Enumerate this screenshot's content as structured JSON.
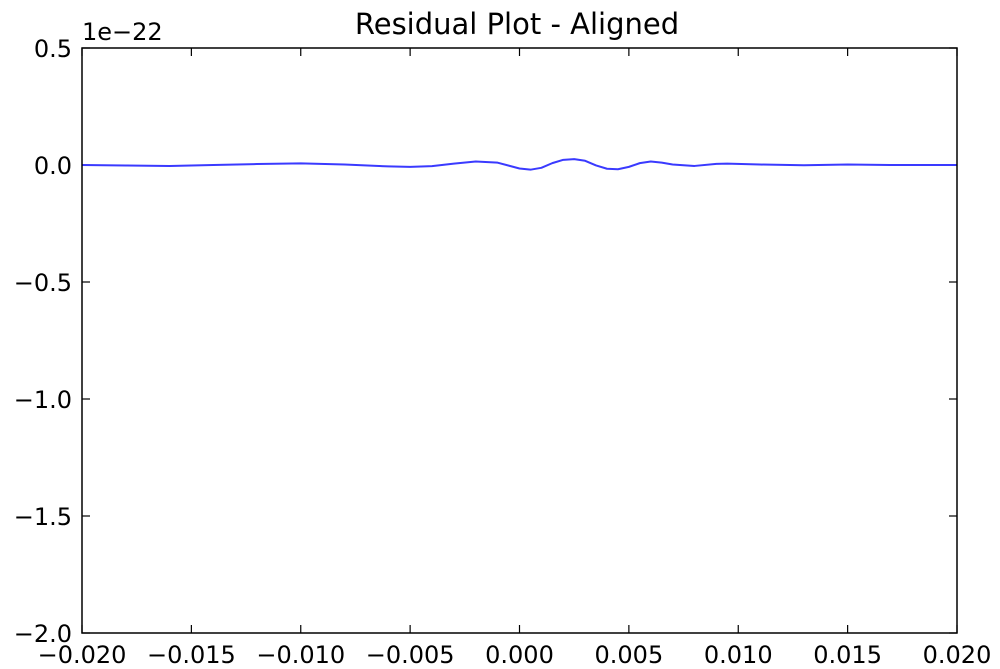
{
  "chart_data": {
    "type": "line",
    "title": "Residual Plot - Aligned",
    "xlabel": "",
    "ylabel": "",
    "y_offset_label": "1e−22",
    "xlim": [
      -0.02,
      0.02
    ],
    "ylim": [
      -2.0,
      0.5
    ],
    "grid": false,
    "x_ticks": [
      -0.02,
      -0.015,
      -0.01,
      -0.005,
      0.0,
      0.005,
      0.01,
      0.015,
      0.02
    ],
    "x_tick_labels": [
      "−0.020",
      "−0.015",
      "−0.010",
      "−0.005",
      "0.000",
      "0.005",
      "0.010",
      "0.015",
      "0.020"
    ],
    "y_ticks": [
      0.5,
      0.0,
      -0.5,
      -1.0,
      -1.5,
      -2.0
    ],
    "y_tick_labels": [
      "0.5",
      "0.0",
      "−0.5",
      "−1.0",
      "−1.5",
      "−2.0"
    ],
    "series": [
      {
        "color": "#3a3aff",
        "x": [
          -0.02,
          -0.018,
          -0.016,
          -0.014,
          -0.012,
          -0.01,
          -0.008,
          -0.006,
          -0.005,
          -0.004,
          -0.003,
          -0.002,
          -0.001,
          0.0,
          0.0005,
          0.001,
          0.0015,
          0.002,
          0.0025,
          0.003,
          0.0035,
          0.004,
          0.0045,
          0.005,
          0.0055,
          0.006,
          0.0065,
          0.007,
          0.008,
          0.009,
          0.0095,
          0.011,
          0.013,
          0.015,
          0.017,
          0.02
        ],
        "y": [
          0.0,
          -0.002,
          -0.004,
          0.0,
          0.004,
          0.007,
          0.002,
          -0.006,
          -0.008,
          -0.005,
          0.006,
          0.015,
          0.01,
          -0.015,
          -0.02,
          -0.012,
          0.008,
          0.022,
          0.025,
          0.018,
          -0.002,
          -0.016,
          -0.018,
          -0.008,
          0.008,
          0.015,
          0.01,
          0.002,
          -0.004,
          0.005,
          0.006,
          0.002,
          -0.001,
          0.002,
          0.0,
          0.0
        ]
      }
    ]
  }
}
